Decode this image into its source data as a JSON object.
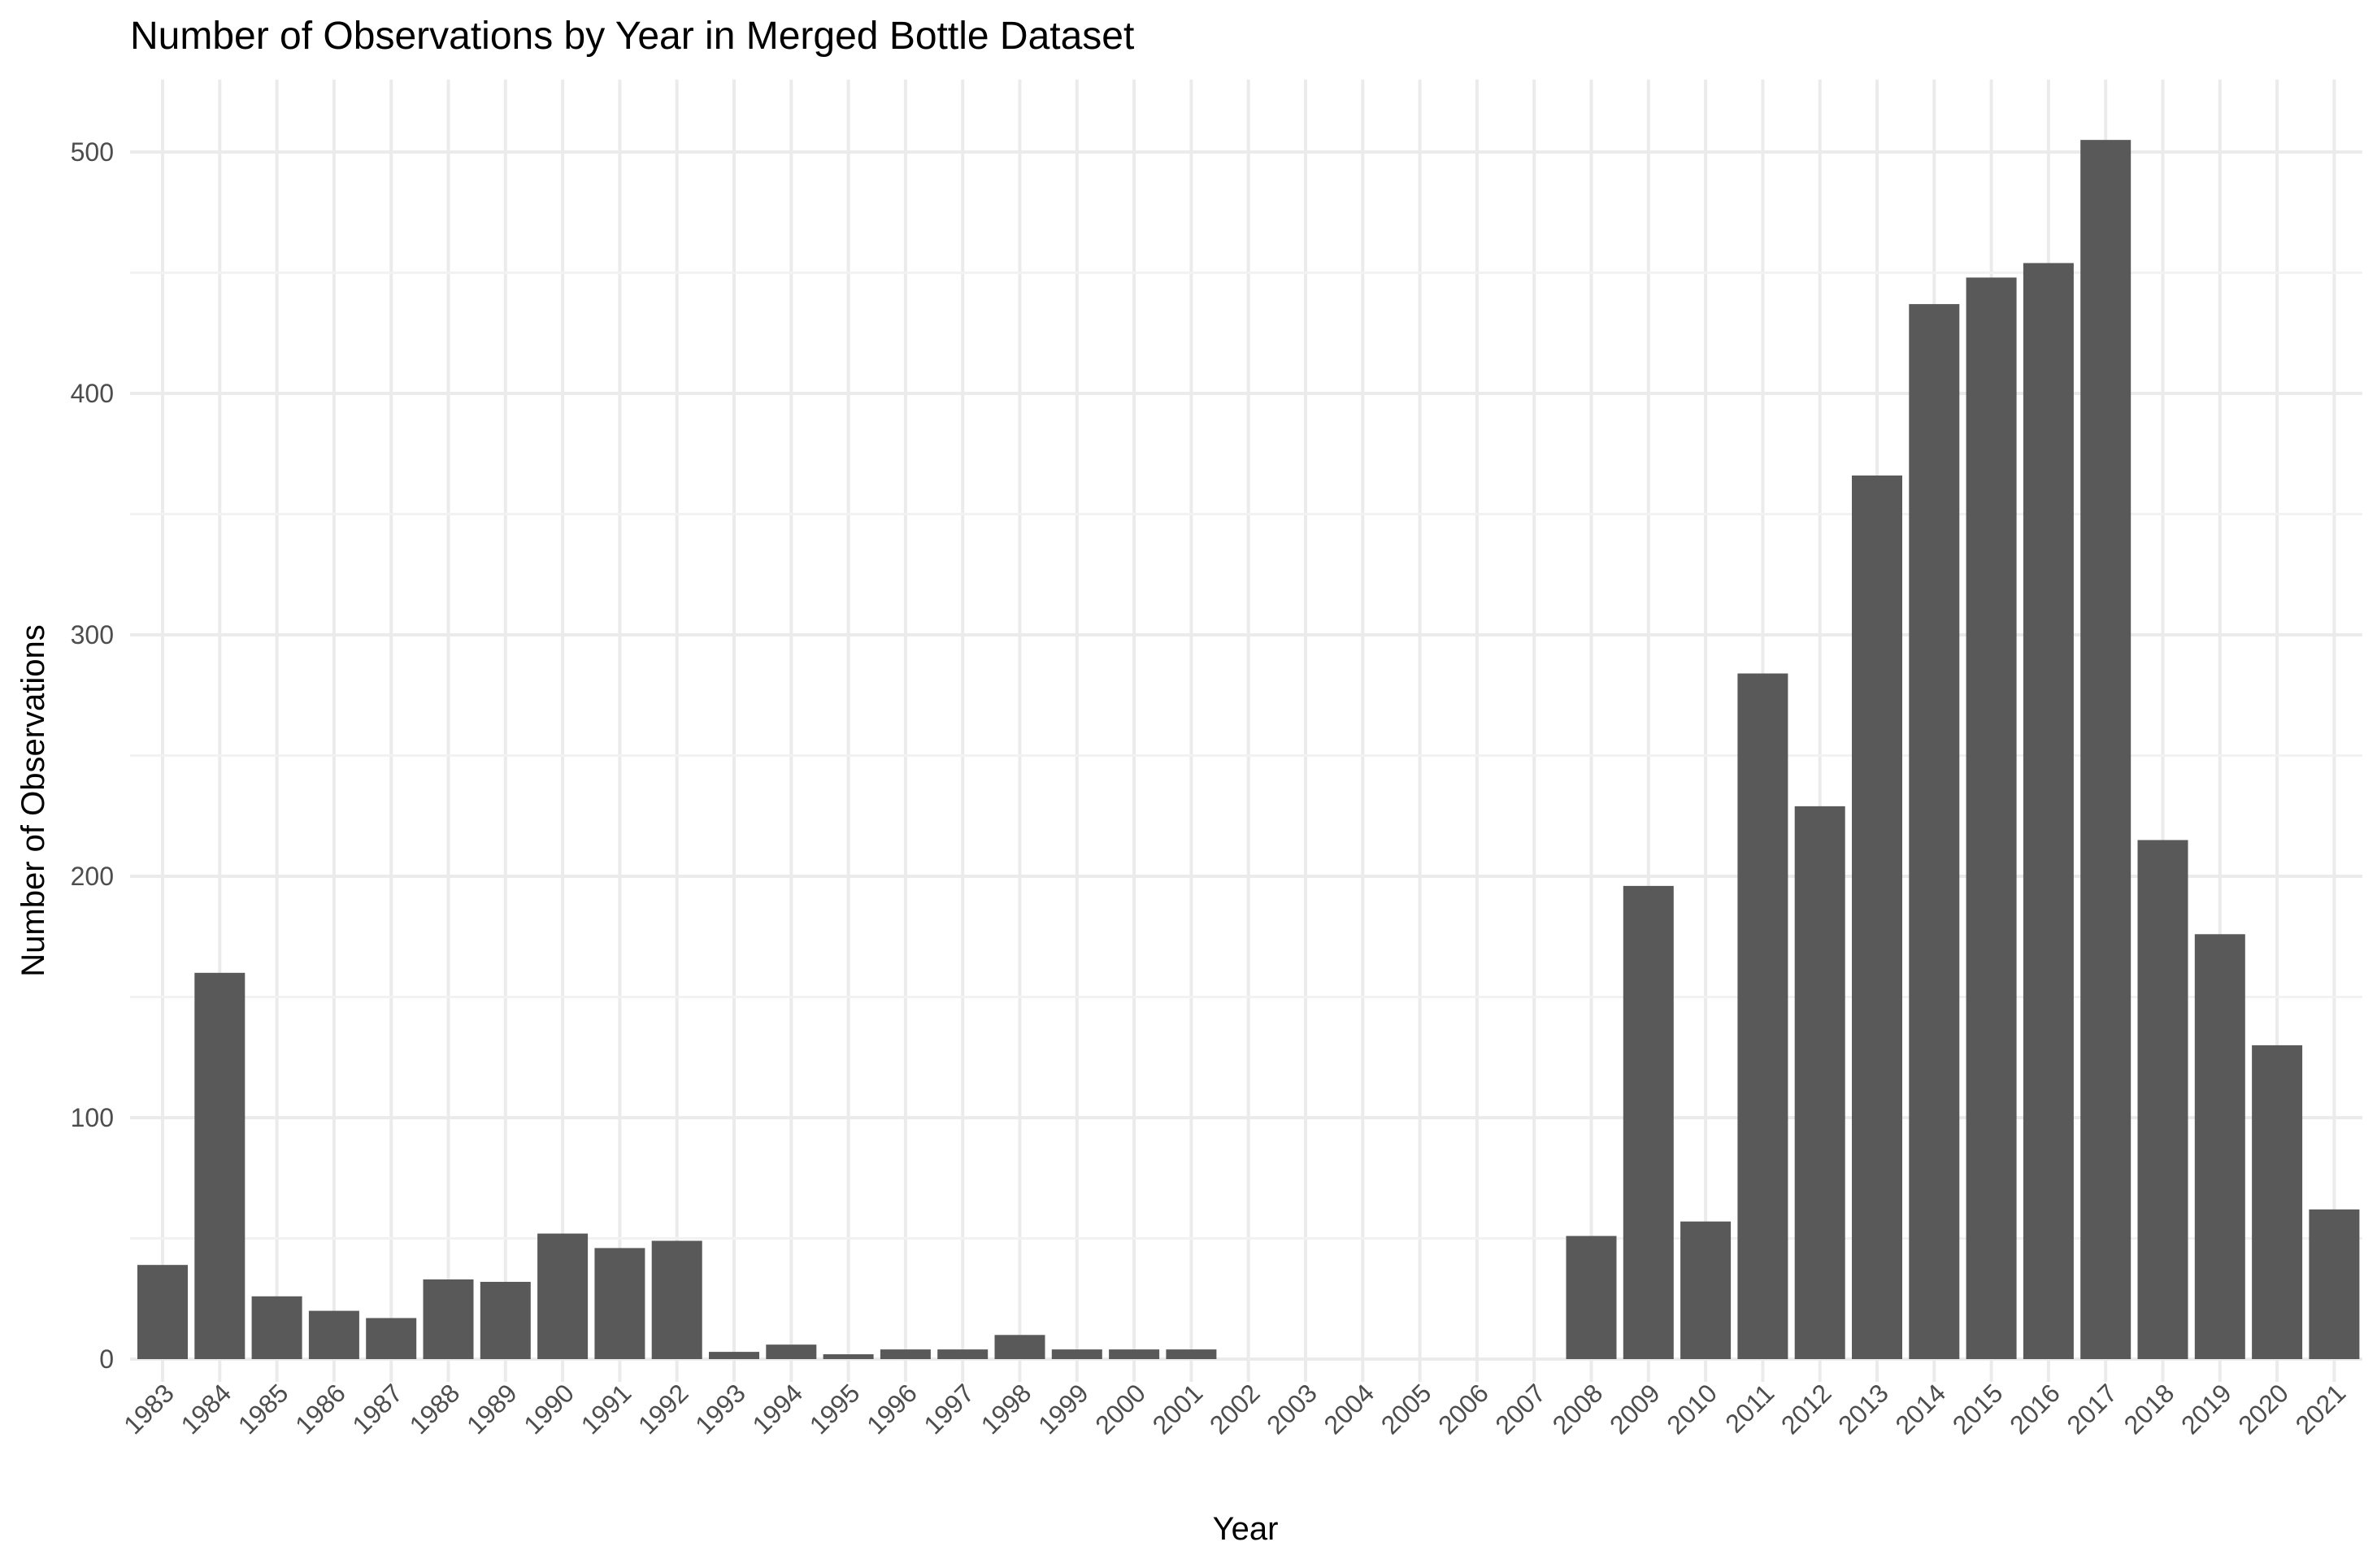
{
  "chart_data": {
    "type": "bar",
    "title": "Number of Observations by Year in Merged Bottle Dataset",
    "xlabel": "Year",
    "ylabel": "Number of Observations",
    "categories": [
      "1983",
      "1984",
      "1985",
      "1986",
      "1987",
      "1988",
      "1989",
      "1990",
      "1991",
      "1992",
      "1993",
      "1994",
      "1995",
      "1996",
      "1997",
      "1998",
      "1999",
      "2000",
      "2001",
      "2002",
      "2003",
      "2004",
      "2005",
      "2006",
      "2007",
      "2008",
      "2009",
      "2010",
      "2011",
      "2012",
      "2013",
      "2014",
      "2015",
      "2016",
      "2017",
      "2018",
      "2019",
      "2020",
      "2021"
    ],
    "values": [
      39,
      160,
      26,
      20,
      17,
      33,
      32,
      52,
      46,
      49,
      3,
      6,
      2,
      4,
      4,
      10,
      4,
      4,
      4,
      0,
      0,
      0,
      0,
      0,
      0,
      51,
      196,
      57,
      284,
      229,
      366,
      437,
      448,
      454,
      505,
      215,
      176,
      130,
      62
    ],
    "ylim": [
      0,
      530
    ],
    "yticks": [
      0,
      100,
      200,
      300,
      400,
      500
    ],
    "grid": true,
    "bar_color": "#595959",
    "grid_color": "#ebebeb",
    "legend": "none"
  }
}
